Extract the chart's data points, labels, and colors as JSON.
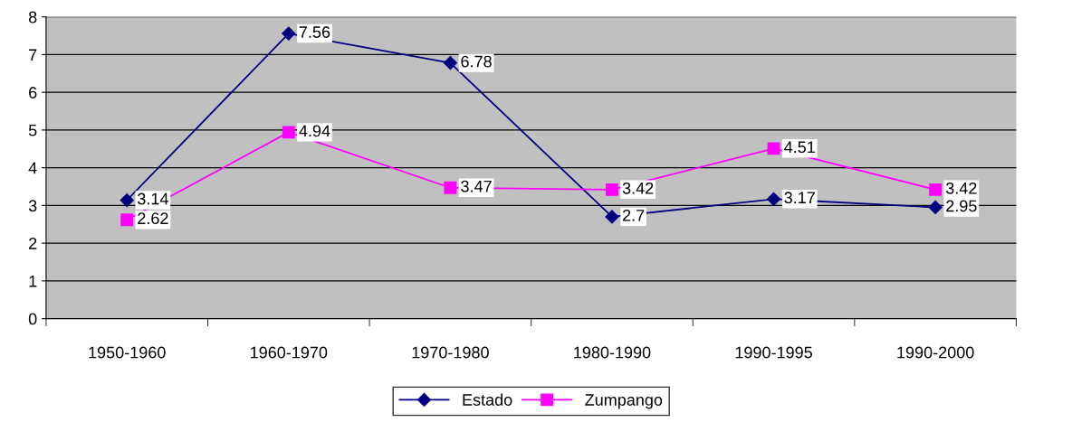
{
  "chart_data": {
    "type": "line",
    "categories": [
      "1950-1960",
      "1960-1970",
      "1970-1980",
      "1980-1990",
      "1990-1995",
      "1990-2000"
    ],
    "series": [
      {
        "name": "Estado",
        "color": "#000080",
        "marker": "diamond",
        "values": [
          3.14,
          7.56,
          6.78,
          2.7,
          3.17,
          2.95
        ]
      },
      {
        "name": "Zumpango",
        "color": "#ff00ff",
        "marker": "square",
        "values": [
          2.62,
          4.94,
          3.47,
          3.42,
          4.51,
          3.42
        ]
      }
    ],
    "ylim": [
      0,
      8
    ],
    "yticks": [
      0,
      1,
      2,
      3,
      4,
      5,
      6,
      7,
      8
    ],
    "grid": "y",
    "legend": "bottom",
    "data_labels": true,
    "line_style": "solid"
  }
}
